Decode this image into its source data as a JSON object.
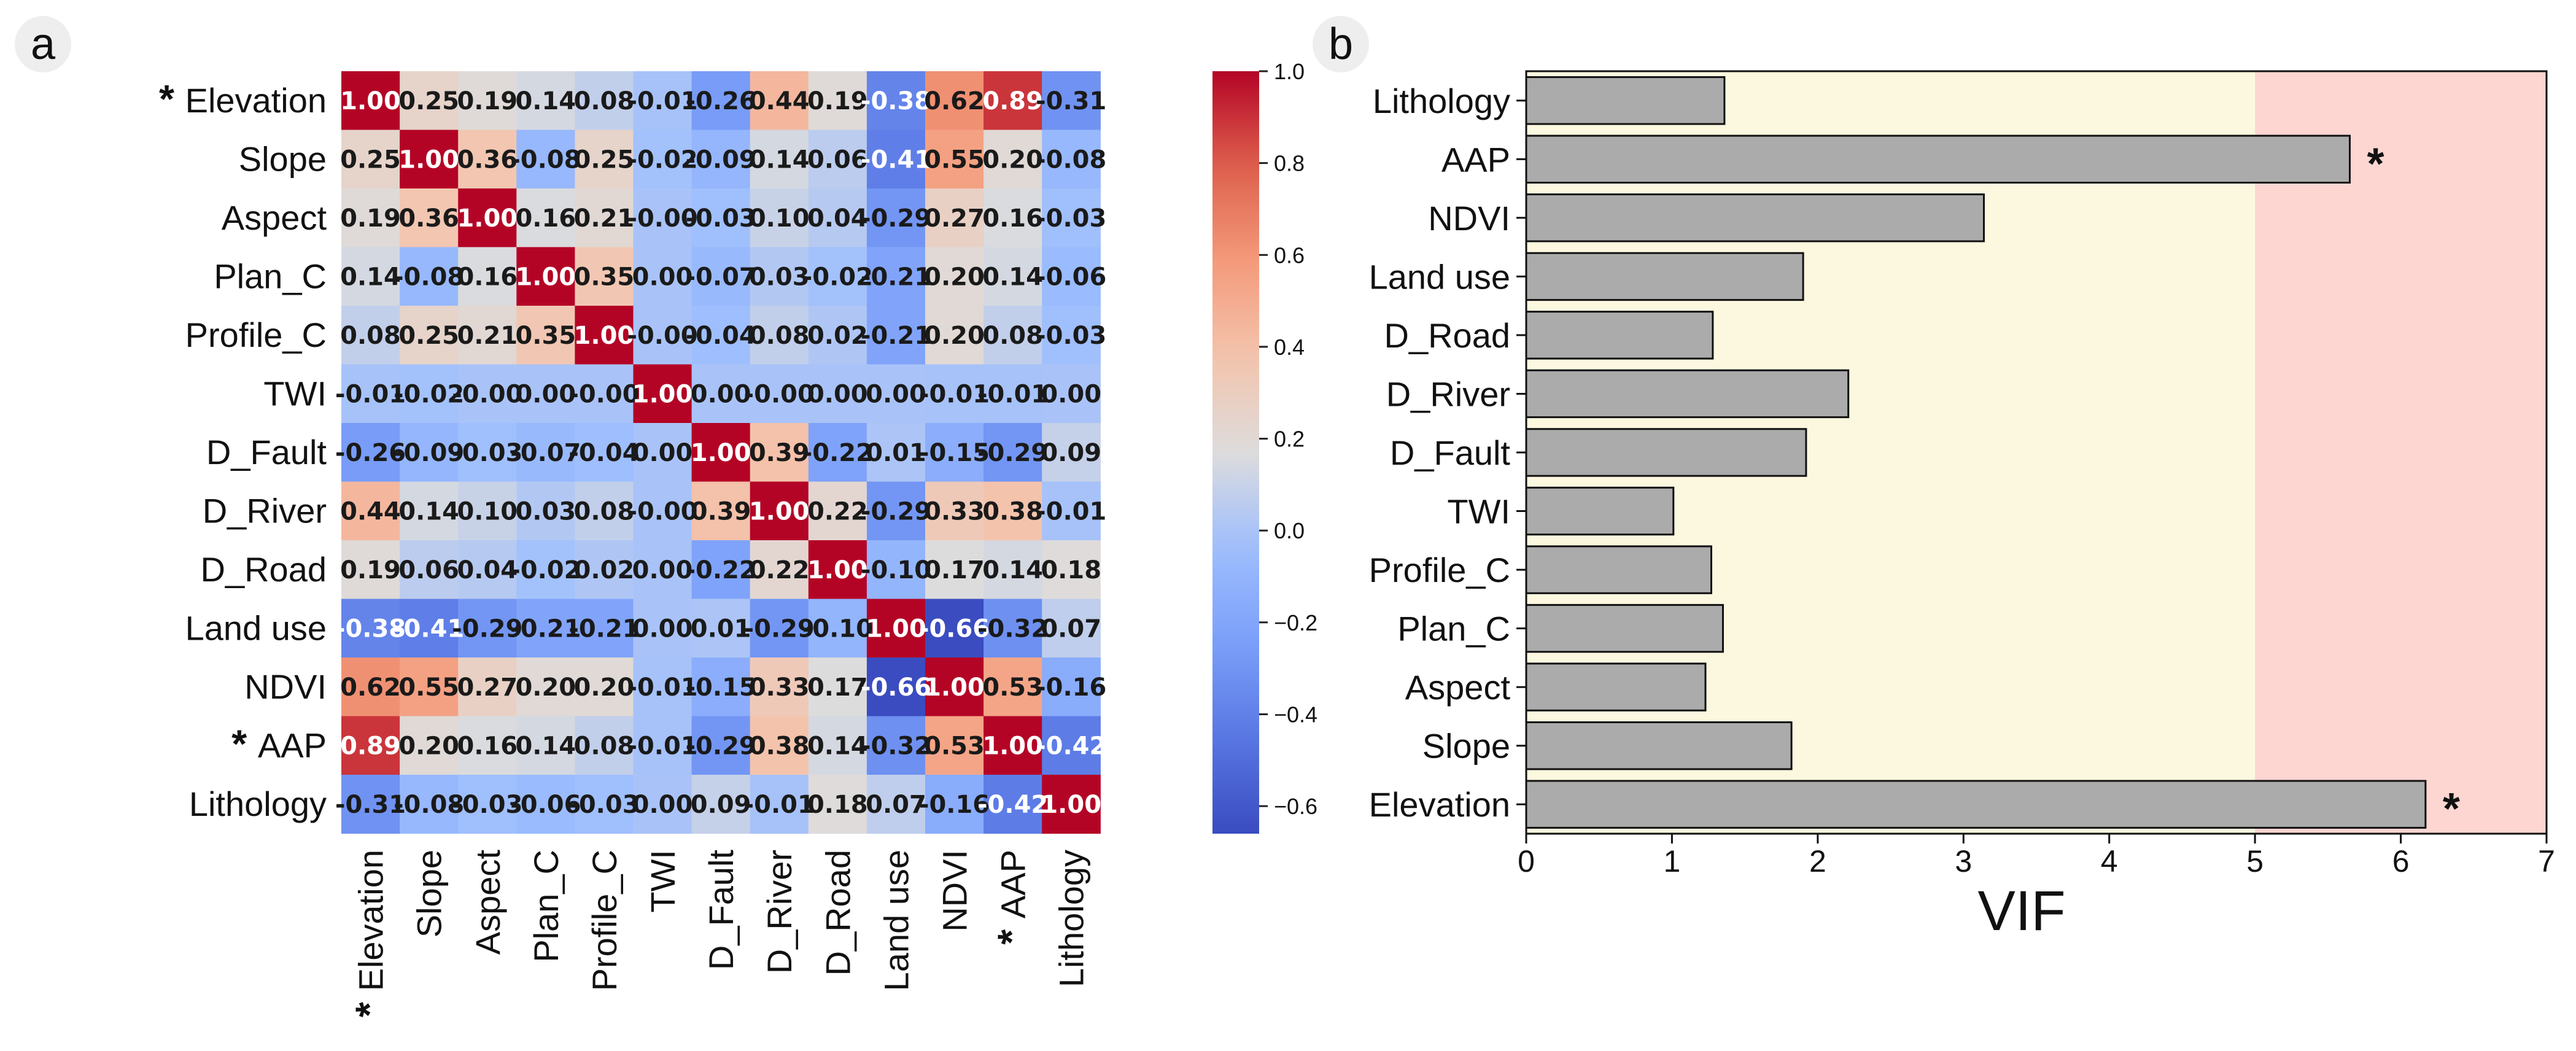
{
  "panel_a_label": "a",
  "panel_b_label": "b",
  "chart_data": [
    {
      "type": "heatmap",
      "title": "",
      "labels": [
        "Elevation",
        "Slope",
        "Aspect",
        "Plan_C",
        "Profile_C",
        "TWI",
        "D_Fault",
        "D_River",
        "D_Road",
        "Land use",
        "NDVI",
        "AAP",
        "Lithology"
      ],
      "starred": [
        "Elevation",
        "AAP"
      ],
      "star_symbol": "*",
      "colormap": "coolwarm",
      "vmin": -0.66,
      "vmax": 1.0,
      "colorbar_ticks": [
        1.0,
        0.8,
        0.6,
        0.4,
        0.2,
        0.0,
        -0.2,
        -0.4,
        -0.6
      ],
      "colorbar_tick_labels": [
        "1.0",
        "0.8",
        "0.6",
        "0.4",
        "0.2",
        "0.0",
        "−0.2",
        "−0.4",
        "−0.6"
      ],
      "matrix": [
        [
          "1.00",
          "0.25",
          "0.19",
          "0.14",
          "0.08",
          "-0.01",
          "-0.26",
          "0.44",
          "0.19",
          "-0.38",
          "0.62",
          "0.89",
          "-0.31"
        ],
        [
          "0.25",
          "1.00",
          "0.36",
          "-0.08",
          "0.25",
          "-0.02",
          "-0.09",
          "0.14",
          "0.06",
          "-0.41",
          "0.55",
          "0.20",
          "-0.08"
        ],
        [
          "0.19",
          "0.36",
          "1.00",
          "0.16",
          "0.21",
          "-0.00",
          "-0.03",
          "0.10",
          "0.04",
          "-0.29",
          "0.27",
          "0.16",
          "-0.03"
        ],
        [
          "0.14",
          "-0.08",
          "0.16",
          "1.00",
          "0.35",
          "0.00",
          "-0.07",
          "0.03",
          "-0.02",
          "-0.21",
          "0.20",
          "0.14",
          "-0.06"
        ],
        [
          "0.08",
          "0.25",
          "0.21",
          "0.35",
          "1.00",
          "-0.00",
          "-0.04",
          "0.08",
          "0.02",
          "-0.21",
          "0.20",
          "0.08",
          "-0.03"
        ],
        [
          "-0.01",
          "-0.02",
          "-0.00",
          "0.00",
          "-0.00",
          "1.00",
          "0.00",
          "-0.00",
          "0.00",
          "0.00",
          "-0.01",
          "-0.01",
          "0.00"
        ],
        [
          "-0.26",
          "-0.09",
          "-0.03",
          "-0.07",
          "-0.04",
          "0.00",
          "1.00",
          "0.39",
          "-0.22",
          "0.01",
          "-0.15",
          "-0.29",
          "0.09"
        ],
        [
          "0.44",
          "0.14",
          "0.10",
          "0.03",
          "0.08",
          "-0.00",
          "0.39",
          "1.00",
          "0.22",
          "-0.29",
          "0.33",
          "0.38",
          "-0.01"
        ],
        [
          "0.19",
          "0.06",
          "0.04",
          "-0.02",
          "0.02",
          "0.00",
          "-0.22",
          "0.22",
          "1.00",
          "-0.10",
          "0.17",
          "0.14",
          "0.18"
        ],
        [
          "-0.38",
          "-0.41",
          "-0.29",
          "-0.21",
          "-0.21",
          "0.00",
          "0.01",
          "-0.29",
          "-0.10",
          "1.00",
          "-0.66",
          "-0.32",
          "0.07"
        ],
        [
          "0.62",
          "0.55",
          "0.27",
          "0.20",
          "0.20",
          "-0.01",
          "-0.15",
          "0.33",
          "0.17",
          "-0.66",
          "1.00",
          "0.53",
          "-0.16"
        ],
        [
          "0.89",
          "0.20",
          "0.16",
          "0.14",
          "0.08",
          "-0.01",
          "-0.29",
          "0.38",
          "0.14",
          "-0.32",
          "0.53",
          "1.00",
          "-0.42"
        ],
        [
          "-0.31",
          "-0.08",
          "-0.03",
          "-0.06",
          "-0.03",
          "0.00",
          "0.09",
          "-0.01",
          "0.18",
          "0.07",
          "-0.16",
          "-0.42",
          "1.00"
        ]
      ]
    },
    {
      "type": "bar",
      "orientation": "horizontal",
      "title": "",
      "xlabel": "VIF",
      "ylabel": "",
      "categories": [
        "Lithology",
        "AAP",
        "NDVI",
        "Land use",
        "D_Road",
        "D_River",
        "D_Fault",
        "TWI",
        "Profile_C",
        "Plan_C",
        "Aspect",
        "Slope",
        "Elevation"
      ],
      "values": [
        1.36,
        5.65,
        3.14,
        1.9,
        1.28,
        2.21,
        1.92,
        1.01,
        1.27,
        1.35,
        1.23,
        1.82,
        6.17
      ],
      "starred": [
        "AAP",
        "Elevation"
      ],
      "xlim": [
        0,
        7
      ],
      "xticks": [
        "0",
        "1",
        "2",
        "3",
        "4",
        "5",
        "6",
        "7"
      ],
      "threshold": 5,
      "region_colors": {
        "below": "#fcf8e0",
        "above": "#fdd6d2"
      },
      "bar_color": "#ababab"
    }
  ]
}
